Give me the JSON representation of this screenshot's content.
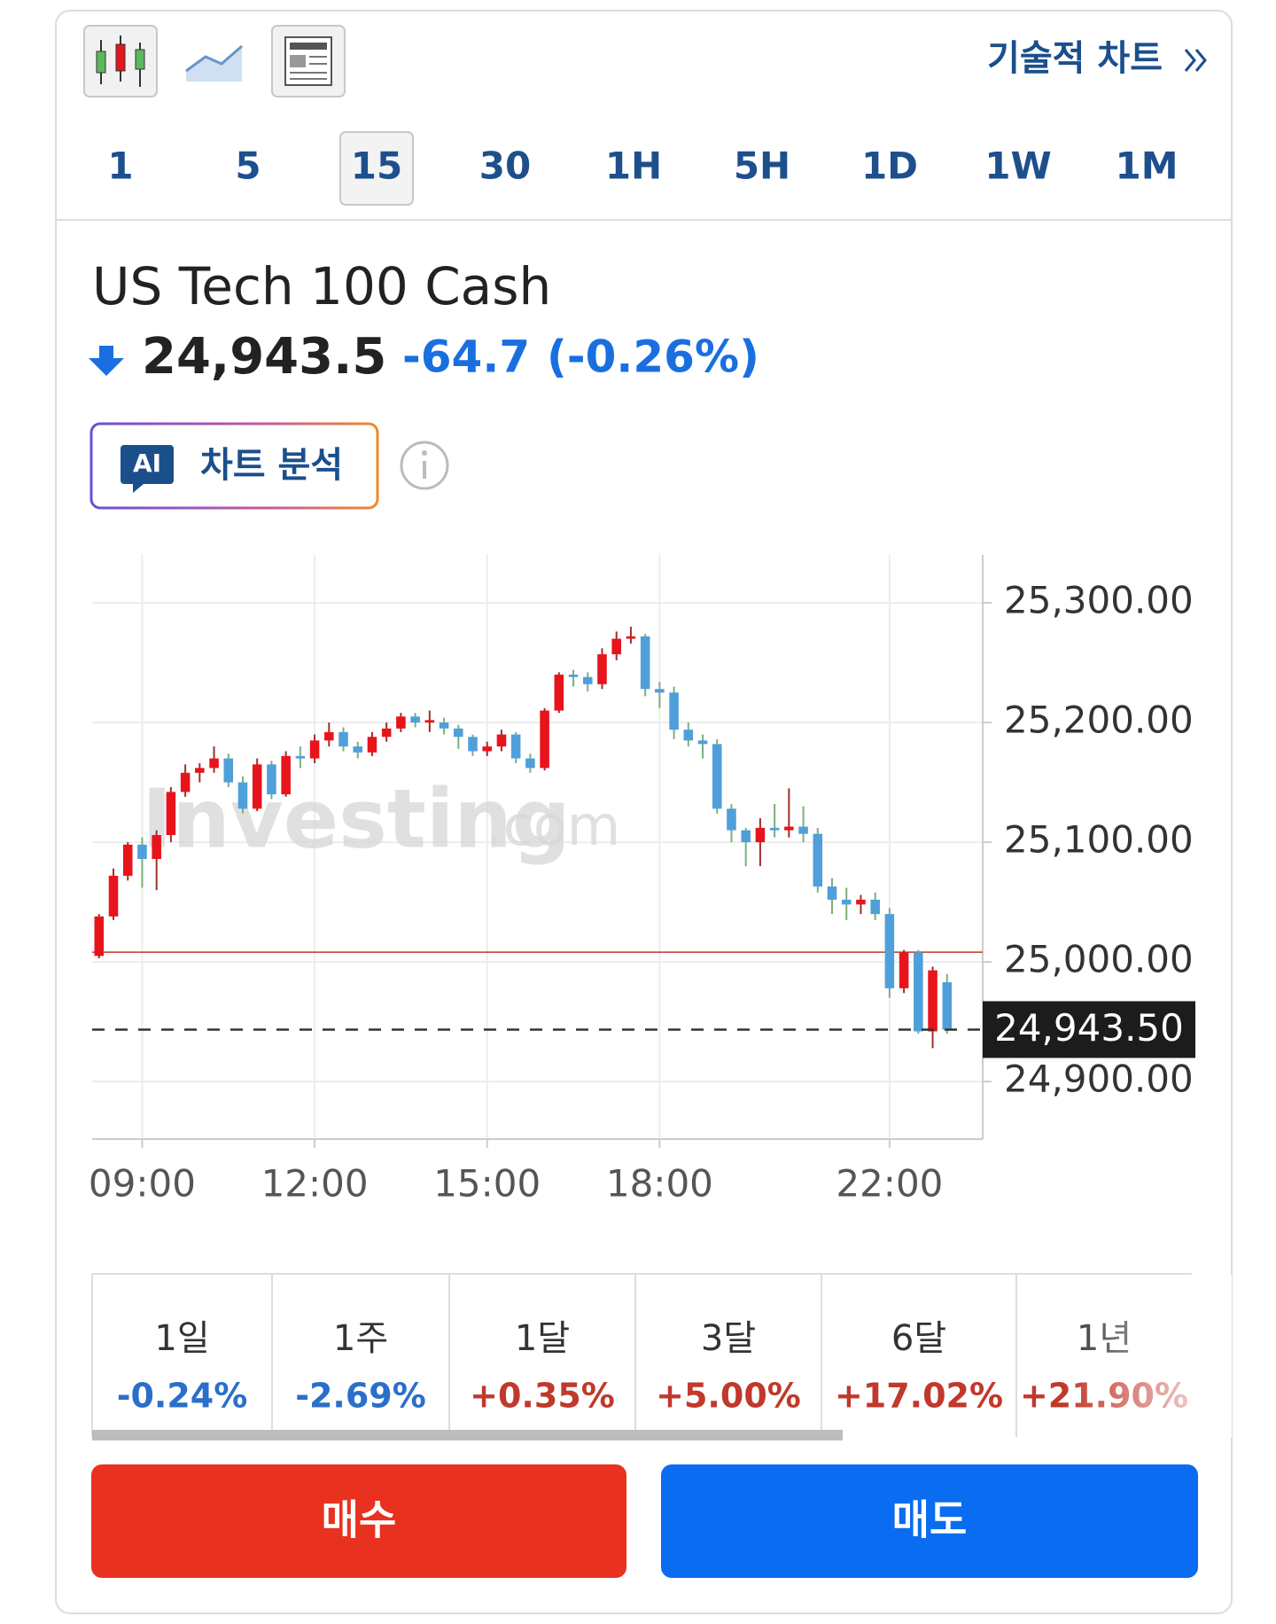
{
  "header": {
    "technical_chart": "기술적 차트",
    "timeframes": [
      "1",
      "5",
      "15",
      "30",
      "1H",
      "5H",
      "1D",
      "1W",
      "1M"
    ],
    "selected_timeframe": "15"
  },
  "instrument": {
    "name": "US Tech 100 Cash",
    "price": "24,943.5",
    "change": "-64.7",
    "change_percent": "(-0.26%)"
  },
  "ai_button": {
    "badge": "AI",
    "label": "차트 분석"
  },
  "chart_data": {
    "type": "candlestick",
    "x": [
      8.25,
      8.5,
      8.75,
      9.0,
      9.25,
      9.5,
      9.75,
      10.0,
      10.25,
      10.5,
      10.75,
      11.0,
      11.25,
      11.5,
      11.75,
      12.0,
      12.25,
      12.5,
      12.75,
      13.0,
      13.25,
      13.5,
      13.75,
      14.0,
      14.25,
      14.5,
      14.75,
      15.0,
      15.25,
      15.5,
      15.75,
      16.0,
      16.25,
      16.5,
      16.75,
      17.0,
      17.25,
      17.5,
      17.75,
      18.0,
      18.25,
      18.5,
      18.75,
      19.0,
      19.25,
      19.5,
      19.75,
      20.0,
      20.25,
      20.5,
      20.75,
      21.0,
      21.25,
      21.5,
      21.75,
      22.0,
      22.25,
      22.5,
      22.75,
      23.0
    ],
    "open": [
      25005,
      25038,
      25072,
      25098,
      25086,
      25106,
      25142,
      25158,
      25162,
      25170,
      25150,
      25128,
      25165,
      25140,
      25172,
      25170,
      25185,
      25192,
      25180,
      25175,
      25188,
      25195,
      25205,
      25200,
      25200,
      25195,
      25188,
      25176,
      25180,
      25190,
      25170,
      25162,
      25210,
      25240,
      25238,
      25232,
      25257,
      25270,
      25272,
      25228,
      25225,
      25194,
      25185,
      25182,
      25128,
      25110,
      25100,
      25112,
      25110,
      25113,
      25107,
      25063,
      25052,
      25048,
      25052,
      25040,
      24978,
      25008,
      24942,
      24983
    ],
    "high": [
      25040,
      25078,
      25100,
      25104,
      25110,
      25146,
      25165,
      25166,
      25180,
      25174,
      25155,
      25170,
      25168,
      25176,
      25180,
      25190,
      25200,
      25196,
      25184,
      25192,
      25200,
      25208,
      25208,
      25210,
      25204,
      25198,
      25190,
      25184,
      25194,
      25192,
      25174,
      25212,
      25242,
      25244,
      25242,
      25262,
      25276,
      25280,
      25274,
      25234,
      25230,
      25200,
      25190,
      25186,
      25132,
      25112,
      25120,
      25132,
      25145,
      25130,
      25112,
      25070,
      25062,
      25056,
      25058,
      25045,
      25010,
      25010,
      24996,
      24990
    ],
    "low": [
      25003,
      25035,
      25068,
      25062,
      25060,
      25100,
      25138,
      25150,
      25158,
      25146,
      25124,
      25126,
      25136,
      25138,
      25162,
      25166,
      25180,
      25176,
      25170,
      25172,
      25184,
      25192,
      25196,
      25192,
      25190,
      25178,
      25172,
      25172,
      25176,
      25166,
      25158,
      25160,
      25208,
      25230,
      25226,
      25228,
      25252,
      25266,
      25222,
      25212,
      25186,
      25180,
      25170,
      25124,
      25100,
      25080,
      25080,
      25104,
      25104,
      25100,
      25058,
      25040,
      25035,
      25040,
      25035,
      24970,
      24974,
      24940,
      24928,
      24940
    ],
    "close": [
      25038,
      25072,
      25098,
      25086,
      25106,
      25142,
      25158,
      25162,
      25170,
      25150,
      25128,
      25165,
      25140,
      25172,
      25170,
      25185,
      25192,
      25180,
      25175,
      25188,
      25195,
      25205,
      25200,
      25202,
      25195,
      25188,
      25176,
      25180,
      25190,
      25170,
      25162,
      25210,
      25240,
      25238,
      25232,
      25257,
      25270,
      25272,
      25228,
      25225,
      25194,
      25185,
      25182,
      25128,
      25110,
      25100,
      25112,
      25110,
      25113,
      25107,
      25063,
      25052,
      25048,
      25052,
      25040,
      24978,
      25008,
      24942,
      24993,
      24943.5
    ],
    "up_color": "#e8141b",
    "down_color": "#4f9fdb",
    "xlim": [
      8.13,
      23.62
    ],
    "xticks": [
      {
        "value": 9,
        "label": "09:00"
      },
      {
        "value": 12,
        "label": "12:00"
      },
      {
        "value": 15,
        "label": "15:00"
      },
      {
        "value": 18,
        "label": "18:00"
      },
      {
        "value": 22,
        "label": "22:00"
      }
    ],
    "ylim": [
      24852,
      25340
    ],
    "yticks": [
      {
        "value": 24900,
        "label": "24,900.00"
      },
      {
        "value": 25000,
        "label": "25,000.00"
      },
      {
        "value": 25100,
        "label": "25,100.00"
      },
      {
        "value": 25200,
        "label": "25,200.00"
      },
      {
        "value": 25300,
        "label": "25,300.00"
      }
    ],
    "grid": true,
    "reference_line": 25008.2,
    "last_price": {
      "value": 24943.5,
      "label": "24,943.50"
    },
    "watermark": [
      "Investing",
      ".com"
    ]
  },
  "performance": [
    {
      "period": "1일",
      "change": "-0.24%"
    },
    {
      "period": "1주",
      "change": "-2.69%"
    },
    {
      "period": "1달",
      "change": "+0.35%"
    },
    {
      "period": "3달",
      "change": "+5.00%"
    },
    {
      "period": "6달",
      "change": "+17.02%"
    },
    {
      "period": "1년",
      "change": "+21.90%"
    }
  ],
  "buttons": {
    "buy": "매수",
    "sell": "매도"
  }
}
